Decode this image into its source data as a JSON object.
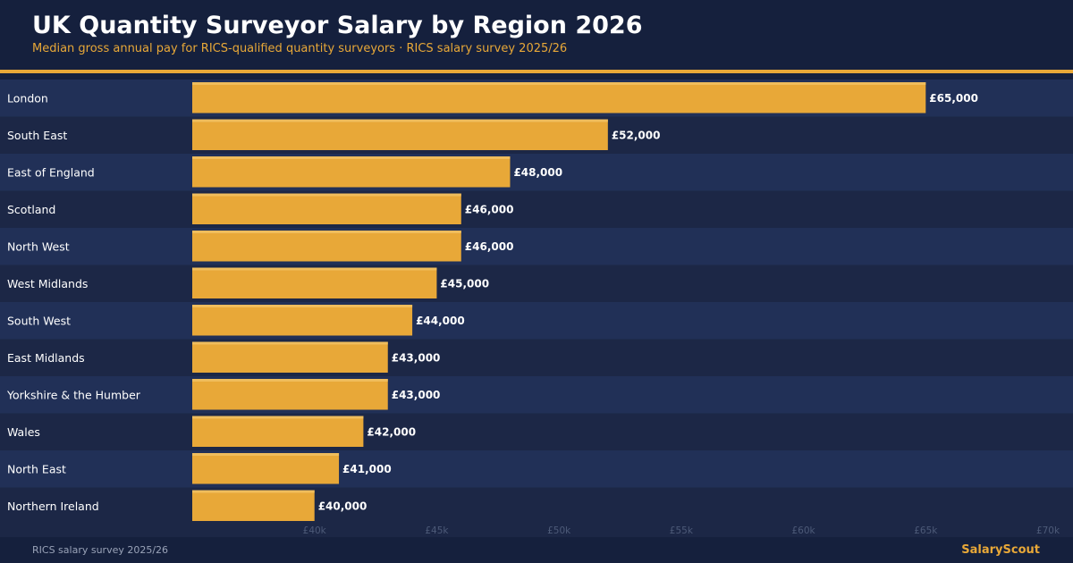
{
  "chart_data": {
    "type": "bar",
    "orientation": "horizontal",
    "title": "UK Quantity Surveyor Salary by Region 2026",
    "subtitle": "Median gross annual pay for RICS-qualified quantity surveyors · RICS salary survey 2025/26",
    "categories": [
      "London",
      "South East",
      "East of England",
      "Scotland",
      "North West",
      "West Midlands",
      "South West",
      "East Midlands",
      "Yorkshire & the Humber",
      "Wales",
      "North East",
      "Northern Ireland"
    ],
    "values": [
      65000,
      52000,
      48000,
      46000,
      46000,
      45000,
      44000,
      43000,
      43000,
      42000,
      41000,
      40000
    ],
    "value_labels": [
      "£65,000",
      "£52,000",
      "£48,000",
      "£46,000",
      "£46,000",
      "£45,000",
      "£44,000",
      "£43,000",
      "£43,000",
      "£42,000",
      "£41,000",
      "£40,000"
    ],
    "xlim": [
      35000,
      70000
    ],
    "ticks": [
      40000,
      45000,
      50000,
      55000,
      60000,
      65000,
      70000
    ],
    "tick_labels": [
      "£40k",
      "£45k",
      "£50k",
      "£55k",
      "£60k",
      "£65k",
      "£70k"
    ],
    "xlabel": "",
    "ylabel": "",
    "grid": false,
    "legend": "none",
    "colors": {
      "bar": "#e8a838",
      "bar_highlight": "#f0bd5c",
      "row_a": "#213057",
      "row_b": "#1c2746"
    }
  },
  "footer": {
    "source": "RICS salary survey 2025/26",
    "brand": "SalaryScout"
  }
}
